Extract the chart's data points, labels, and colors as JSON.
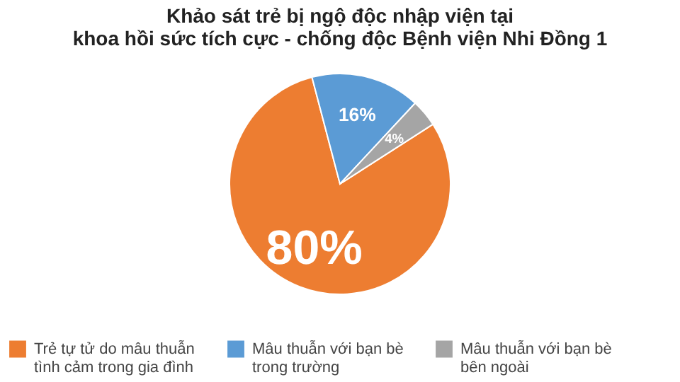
{
  "chart_data": {
    "type": "pie",
    "title": "Khảo sát trẻ bị ngộ độc nhập viện tại\nkhoa hồi sức tích cực - chống độc Bệnh viện Nhi Đồng 1",
    "categories": [
      "Trẻ tự tử do mâu thuẫn\ntình cảm trong gia đình",
      "Mâu thuẫn với bạn bè\ntrong trường",
      "Mâu thuẫn với bạn bè\nbên ngoài"
    ],
    "values": [
      80,
      16,
      4
    ],
    "colors": [
      "#ed7d31",
      "#5b9bd5",
      "#a5a5a5"
    ],
    "value_labels": [
      "80%",
      "16%",
      "4%"
    ],
    "legend": "bottom"
  }
}
